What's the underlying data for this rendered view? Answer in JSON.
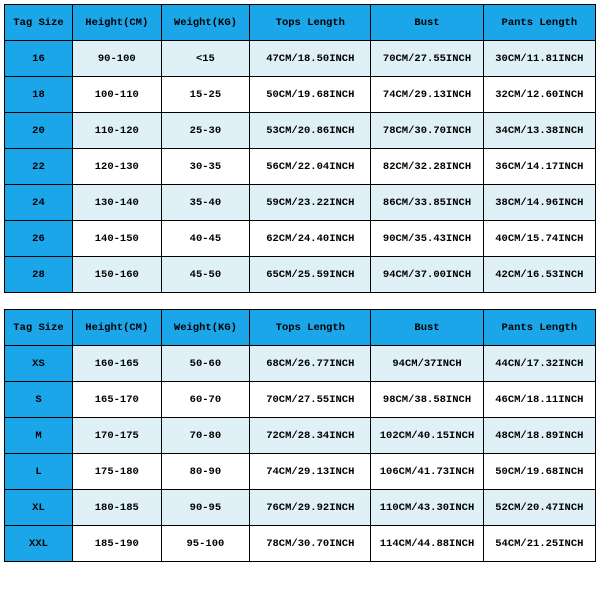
{
  "colors": {
    "header_bg": "#1ba6ea",
    "odd_row_bg": "#dff0f7",
    "even_row_bg": "#ffffff",
    "border": "#000000",
    "text": "#000000"
  },
  "typography": {
    "font_family": "Courier New, monospace",
    "font_size_pt": 8,
    "font_weight": "bold"
  },
  "tables": [
    {
      "columns": [
        "Tag Size",
        "Height(CM)",
        "Weight(KG)",
        "Tops Length",
        "Bust",
        "Pants Length"
      ],
      "rows": [
        [
          "16",
          "90-100",
          "<15",
          "47CM/18.50INCH",
          "70CM/27.55INCH",
          "30CM/11.81INCH"
        ],
        [
          "18",
          "100-110",
          "15-25",
          "50CM/19.68INCH",
          "74CM/29.13INCH",
          "32CM/12.60INCH"
        ],
        [
          "20",
          "110-120",
          "25-30",
          "53CM/20.86INCH",
          "78CM/30.70INCH",
          "34CM/13.38INCH"
        ],
        [
          "22",
          "120-130",
          "30-35",
          "56CM/22.04INCH",
          "82CM/32.28INCH",
          "36CM/14.17INCH"
        ],
        [
          "24",
          "130-140",
          "35-40",
          "59CM/23.22INCH",
          "86CM/33.85INCH",
          "38CM/14.96INCH"
        ],
        [
          "26",
          "140-150",
          "40-45",
          "62CM/24.40INCH",
          "90CM/35.43INCH",
          "40CM/15.74INCH"
        ],
        [
          "28",
          "150-160",
          "45-50",
          "65CM/25.59INCH",
          "94CM/37.00INCH",
          "42CM/16.53INCH"
        ]
      ]
    },
    {
      "columns": [
        "Tag Size",
        "Height(CM)",
        "Weight(KG)",
        "Tops Length",
        "Bust",
        "Pants Length"
      ],
      "rows": [
        [
          "XS",
          "160-165",
          "50-60",
          "68CM/26.77INCH",
          "94CM/37INCH",
          "44CN/17.32INCH"
        ],
        [
          "S",
          "165-170",
          "60-70",
          "70CM/27.55INCH",
          "98CM/38.58INCH",
          "46CM/18.11INCH"
        ],
        [
          "M",
          "170-175",
          "70-80",
          "72CM/28.34INCH",
          "102CM/40.15INCH",
          "48CM/18.89INCH"
        ],
        [
          "L",
          "175-180",
          "80-90",
          "74CM/29.13INCH",
          "106CM/41.73INCH",
          "50CM/19.68INCH"
        ],
        [
          "XL",
          "180-185",
          "90-95",
          "76CM/29.92INCH",
          "110CM/43.30INCH",
          "52CM/20.47INCH"
        ],
        [
          "XXL",
          "185-190",
          "95-100",
          "78CM/30.70INCH",
          "114CM/44.88INCH",
          "54CM/21.25INCH"
        ]
      ]
    }
  ]
}
